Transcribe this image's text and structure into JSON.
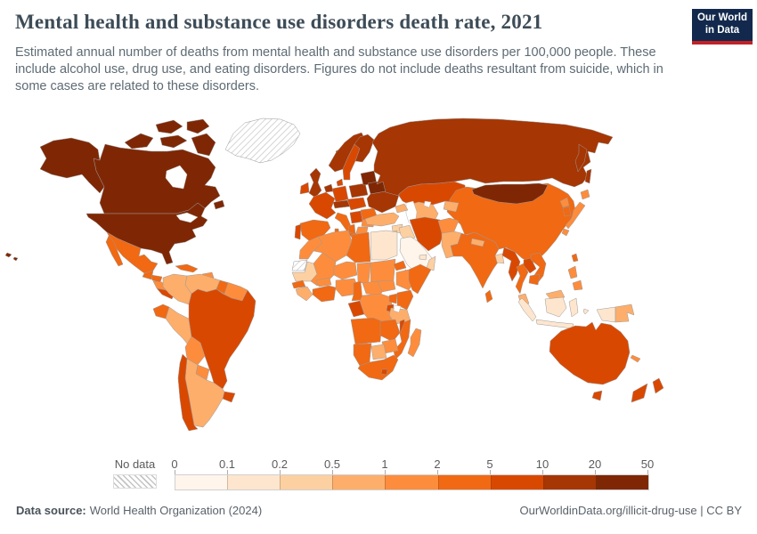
{
  "header": {
    "title": "Mental health and substance use disorders death rate, 2021",
    "subtitle": "Estimated annual number of deaths from mental health and substance use disorders per 100,000 people. These include alcohol use, drug use, and eating disorders. Figures do not include deaths resultant from suicide, which in some cases are related to these disorders.",
    "logo_line1": "Our World",
    "logo_line2": "in Data"
  },
  "legend": {
    "no_data_label": "No data",
    "ticks": [
      "0",
      "0.1",
      "0.2",
      "0.5",
      "1",
      "2",
      "5",
      "10",
      "20",
      "50"
    ],
    "colors": [
      "#fff5eb",
      "#fee6ce",
      "#fdd0a2",
      "#fdae6b",
      "#fd8d3c",
      "#f16913",
      "#d94801",
      "#a63603",
      "#7f2704"
    ]
  },
  "footer": {
    "source_label": "Data source:",
    "source": "World Health Organization (2024)",
    "right": "OurWorldinData.org/illicit-drug-use | CC BY"
  },
  "chart_data": {
    "type": "choropleth",
    "title": "Mental health and substance use disorders death rate, 2021",
    "year": 2021,
    "unit": "deaths per 100,000 people",
    "scale": "log-binned",
    "bins": [
      {
        "label": "0-0.1",
        "color": "#fff5eb"
      },
      {
        "label": "0.1-0.2",
        "color": "#fee6ce"
      },
      {
        "label": "0.2-0.5",
        "color": "#fdd0a2"
      },
      {
        "label": "0.5-1",
        "color": "#fdae6b"
      },
      {
        "label": "1-2",
        "color": "#fd8d3c"
      },
      {
        "label": "2-5",
        "color": "#f16913"
      },
      {
        "label": "5-10",
        "color": "#d94801"
      },
      {
        "label": "10-20",
        "color": "#a63603"
      },
      {
        "label": "20-50",
        "color": "#7f2704"
      },
      {
        "label": "no-data",
        "color": "hatch"
      }
    ],
    "regions": {
      "united-states": "20-50",
      "canada": "20-50",
      "greenland": "no-data",
      "iceland": "10-20",
      "mexico": "2-5",
      "guatemala": "2-5",
      "honduras": "2-5",
      "nicaragua": "1-2",
      "costa-rica-panama": "5-10",
      "cuba": "2-5",
      "hispaniola": "1-2",
      "jamaica": "2-5",
      "colombia": "0.5-1",
      "venezuela": "0.5-1",
      "guyana": "2-5",
      "suriname-guiana": "1-2",
      "ecuador": "2-5",
      "peru": "0.5-1",
      "brazil": "5-10",
      "bolivia": "1-2",
      "paraguay": "1-2",
      "uruguay": "5-10",
      "argentina": "0.5-1",
      "chile": "5-10",
      "united-kingdom": "10-20",
      "ireland": "5-10",
      "norway": "10-20",
      "sweden": "5-10",
      "finland": "10-20",
      "denmark": "5-10",
      "benelux": "10-20",
      "germany": "5-10",
      "france": "5-10",
      "spain": "2-5",
      "portugal": "5-10",
      "italy": "2-5",
      "switzerland-austria": "10-20",
      "czech-slovakia-hungary": "5-10",
      "poland": "10-20",
      "baltic-states": "20-50",
      "belarus": "20-50",
      "ukraine": "10-20",
      "romania": "2-5",
      "balkans": "5-10",
      "bulgaria": "1-2",
      "greece": "1-2",
      "russia": "10-20",
      "kazakhstan": "5-10",
      "uzbekistan-turkmenistan": "0.5-1",
      "kyrgyzstan-tajikistan": "0.5-1",
      "caucasus": "0.5-1",
      "turkey": "0.5-1",
      "syria": "0.2-0.5",
      "iraq": "0.2-0.5",
      "iran": "5-10",
      "jordan-israel": "0.2-0.5",
      "saudi-arabia": "0-0.1",
      "yemen": "0.5-1",
      "oman": "0.2-0.5",
      "gulf-states": "0.1-0.2",
      "morocco": "1-2",
      "western-sahara": "no-data",
      "mauritania": "0.2-0.5",
      "algeria": "1-2",
      "tunisia": "2-5",
      "libya": "2-5",
      "egypt": "0.1-0.2",
      "mali": "1-2",
      "niger": "1-2",
      "chad": "1-2",
      "sudan": "1-2",
      "eritrea": "2-5",
      "ethiopia": "1-2",
      "somalia": "2-5",
      "senegal": "2-5",
      "guinea-coast": "0.5-1",
      "ghana-ivory-coast": "2-5",
      "burkina-faso": "1-2",
      "nigeria": "1-2",
      "cameroon": "2-5",
      "central-african-republic": "1-2",
      "south-sudan": "1-2",
      "gabon-congo": "5-10",
      "dr-congo": "1-2",
      "uganda": "2-5",
      "kenya": "2-5",
      "tanzania": "0.5-1",
      "rwanda-burundi": "5-10",
      "angola": "2-5",
      "zambia": "2-5",
      "malawi": "5-10",
      "mozambique": "2-5",
      "zimbabwe": "1-2",
      "botswana": "0.5-1",
      "namibia": "2-5",
      "south-africa": "2-5",
      "lesotho": "5-10",
      "madagascar": "1-2",
      "afghanistan": "1-2",
      "pakistan": "0.5-1",
      "india": "2-5",
      "nepal": "0.5-1",
      "bangladesh": "0.2-0.5",
      "sri-lanka": "2-5",
      "china": "2-5",
      "mongolia": "20-50",
      "north-korea": "1-2",
      "south-korea": "2-5",
      "japan": "1-2",
      "taiwan": "2-5",
      "myanmar": "5-10",
      "thailand": "2-5",
      "laos": "5-10",
      "vietnam": "2-5",
      "cambodia": "2-5",
      "malaysia": "0.5-1",
      "indonesia": "0.1-0.2",
      "papua-new-guinea": "0.5-1",
      "philippines": "1-2",
      "new-caledonia": "1-2",
      "australia": "5-10",
      "new-zealand": "5-10"
    }
  }
}
